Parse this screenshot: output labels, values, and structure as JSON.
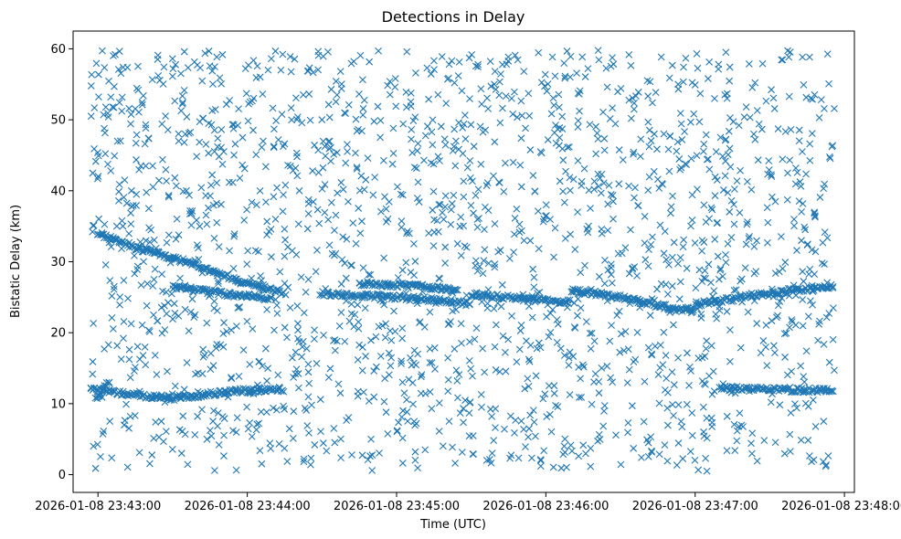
{
  "chart_data": {
    "type": "scatter",
    "title": "Detections in Delay",
    "xlabel": "Time (UTC)",
    "ylabel": "Bistatic Delay (km)",
    "marker": "x",
    "color": "#1f77b4",
    "grid": false,
    "xlim": [
      "2026-01-08 23:42:50",
      "2026-01-08 23:48:04"
    ],
    "ylim": [
      -2.5,
      62.5
    ],
    "x_ticks": [
      "2026-01-08 23:43:00",
      "2026-01-08 23:44:00",
      "2026-01-08 23:45:00",
      "2026-01-08 23:46:00",
      "2026-01-08 23:47:00",
      "2026-01-08 23:48:00"
    ],
    "y_ticks": [
      "0",
      "10",
      "20",
      "30",
      "40",
      "50",
      "60"
    ],
    "data_extent": {
      "x": [
        "2026-01-08 23:42:57",
        "2026-01-08 23:47:56"
      ],
      "y": [
        0.5,
        59.8
      ]
    },
    "tracks": [
      {
        "points": [
          [
            "2026-01-08 23:42:57",
            12.0
          ],
          [
            "2026-01-08 23:43:15",
            11.2
          ],
          [
            "2026-01-08 23:43:30",
            10.8
          ],
          [
            "2026-01-08 23:43:45",
            11.4
          ],
          [
            "2026-01-08 23:44:00",
            11.9
          ],
          [
            "2026-01-08 23:44:15",
            12.0
          ]
        ]
      },
      {
        "points": [
          [
            "2026-01-08 23:42:59",
            10.8
          ],
          [
            "2026-01-08 23:43:05",
            13.5
          ]
        ]
      },
      {
        "points": [
          [
            "2026-01-08 23:43:00",
            34.0
          ],
          [
            "2026-01-08 23:43:15",
            32.0
          ],
          [
            "2026-01-08 23:43:35",
            30.0
          ],
          [
            "2026-01-08 23:43:55",
            27.5
          ],
          [
            "2026-01-08 23:44:15",
            25.5
          ]
        ]
      },
      {
        "points": [
          [
            "2026-01-08 23:43:30",
            26.5
          ],
          [
            "2026-01-08 23:43:50",
            25.5
          ],
          [
            "2026-01-08 23:44:10",
            24.8
          ]
        ]
      },
      {
        "points": [
          [
            "2026-01-08 23:44:30",
            25.5
          ],
          [
            "2026-01-08 23:45:00",
            25.0
          ],
          [
            "2026-01-08 23:45:20",
            24.5
          ],
          [
            "2026-01-08 23:45:30",
            24.0
          ]
        ]
      },
      {
        "points": [
          [
            "2026-01-08 23:44:45",
            27.0
          ],
          [
            "2026-01-08 23:45:10",
            26.5
          ],
          [
            "2026-01-08 23:45:25",
            26.0
          ]
        ]
      },
      {
        "points": [
          [
            "2026-01-08 23:45:30",
            25.5
          ],
          [
            "2026-01-08 23:45:50",
            24.8
          ],
          [
            "2026-01-08 23:46:10",
            24.3
          ]
        ]
      },
      {
        "points": [
          [
            "2026-01-08 23:46:10",
            26.0
          ],
          [
            "2026-01-08 23:46:30",
            25.0
          ],
          [
            "2026-01-08 23:46:50",
            23.5
          ],
          [
            "2026-01-08 23:47:00",
            23.0
          ]
        ]
      },
      {
        "points": [
          [
            "2026-01-08 23:47:00",
            24.0
          ],
          [
            "2026-01-08 23:47:20",
            25.0
          ],
          [
            "2026-01-08 23:47:40",
            26.0
          ],
          [
            "2026-01-08 23:47:56",
            26.5
          ]
        ]
      },
      {
        "points": [
          [
            "2026-01-08 23:47:10",
            12.2
          ],
          [
            "2026-01-08 23:47:35",
            12.0
          ],
          [
            "2026-01-08 23:47:56",
            11.8
          ]
        ]
      }
    ]
  }
}
